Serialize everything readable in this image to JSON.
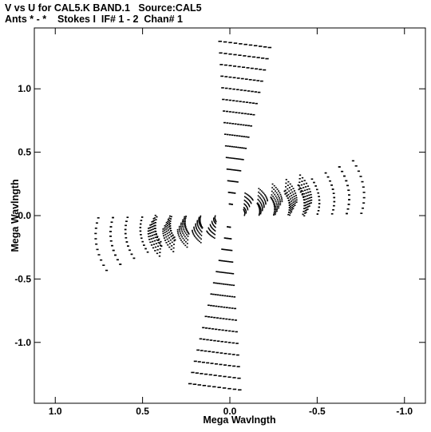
{
  "chart_data": {
    "type": "scatter",
    "title": "V vs U for CAL5.K BAND.1   Source:CAL5",
    "subtitle": "Ants * - *    Stokes I  IF# 1 - 2  Chan# 1",
    "xlabel": "Mega Wavlngth",
    "ylabel": "Mega Wavlngth",
    "xlim": [
      1.12,
      -1.12
    ],
    "ylim": [
      -1.48,
      1.48
    ],
    "xticks": [
      1.0,
      0.5,
      0.0,
      -0.5,
      -1.0
    ],
    "xtick_labels": [
      "1.0",
      "0.5",
      "0.0",
      "-0.5",
      "-1.0"
    ],
    "yticks": [
      1.0,
      0.5,
      0.0,
      -0.5,
      -1.0
    ],
    "ytick_labels": [
      "1.0",
      "0.5",
      "0.0",
      "-0.5",
      "-1.0"
    ],
    "grid": false,
    "arms": [
      {
        "dx": -0.006,
        "dy": 0.09,
        "n": 15
      },
      {
        "dx": 0.085,
        "dy": -0.025,
        "n": 9
      },
      {
        "dx": -0.085,
        "dy": 0.025,
        "n": 8
      }
    ],
    "hourangle_rotations_deg": [
      -50,
      -40,
      -30,
      -20,
      -10,
      0,
      10,
      20,
      30,
      40,
      50
    ]
  }
}
